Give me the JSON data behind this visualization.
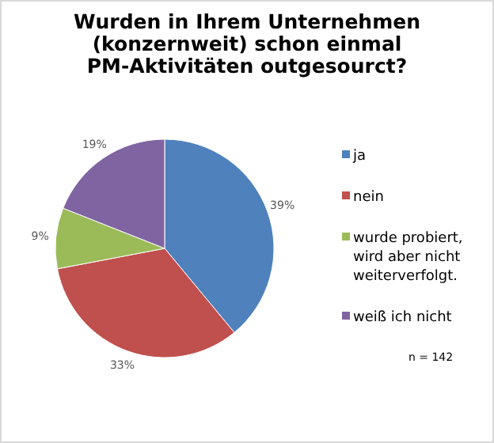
{
  "chart_data": {
    "type": "pie",
    "title": "Wurden in Ihrem Unternehmen (konzernweit) schon einmal PM-Aktivitäten outgesourct?",
    "categories": [
      "ja",
      "nein",
      "wurde probiert, wird aber nicht weiterverfolgt.",
      "weiß ich nicht"
    ],
    "values": [
      39,
      33,
      9,
      19
    ],
    "colors": [
      "#4f81bd",
      "#c0504d",
      "#9bbb59",
      "#8064a2"
    ],
    "value_labels": [
      "39%",
      "33%",
      "9%",
      "19%"
    ],
    "legend": "right",
    "annotations": [
      "n = 142"
    ]
  }
}
